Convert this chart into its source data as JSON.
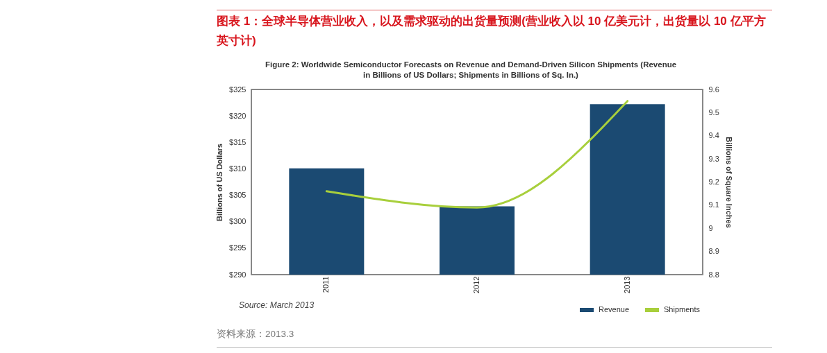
{
  "chart_data": {
    "type": "bar",
    "title": "图表 1：全球半导体营业收入，以及需求驱动的出货量预测(营业收入以 10 亿美元计，出货量以 10 亿平方英寸计)",
    "subtitle": "Figure 2: Worldwide Semiconductor Forecasts on Revenue and Demand-Driven Silicon Shipments (Revenue in Billions of US Dollars; Shipments in Billions of Sq. In.)",
    "categories": [
      "2011",
      "2012",
      "2013"
    ],
    "series": [
      {
        "name": "Revenue",
        "color": "#1b4a72",
        "values": [
          310.1,
          302.9,
          322.2
        ]
      },
      {
        "name": "Shipments",
        "type": "line",
        "axis": "y2",
        "color": "#a8cf3c",
        "values": [
          9.16,
          9.09,
          9.55
        ]
      }
    ],
    "ylabel": "Billions of US Dollars",
    "y2label": "Billions of Square Inches",
    "ylim": [
      290,
      325
    ],
    "yticks": [
      {
        "value": 290,
        "label": "$290"
      },
      {
        "value": 295,
        "label": "$295"
      },
      {
        "value": 300,
        "label": "$300"
      },
      {
        "value": 305,
        "label": "$305"
      },
      {
        "value": 310,
        "label": "$310"
      },
      {
        "value": 315,
        "label": "$315"
      },
      {
        "value": 320,
        "label": "$320"
      },
      {
        "value": 325,
        "label": "$325"
      }
    ],
    "y2lim": [
      8.8,
      9.6
    ],
    "y2ticks": [
      8.8,
      8.9,
      9,
      9.1,
      9.2,
      9.3,
      9.4,
      9.5,
      9.6
    ],
    "grid": false,
    "legend": "bottom right",
    "annotations": [
      "Source: March 2013",
      "资料来源：2013.3"
    ]
  }
}
